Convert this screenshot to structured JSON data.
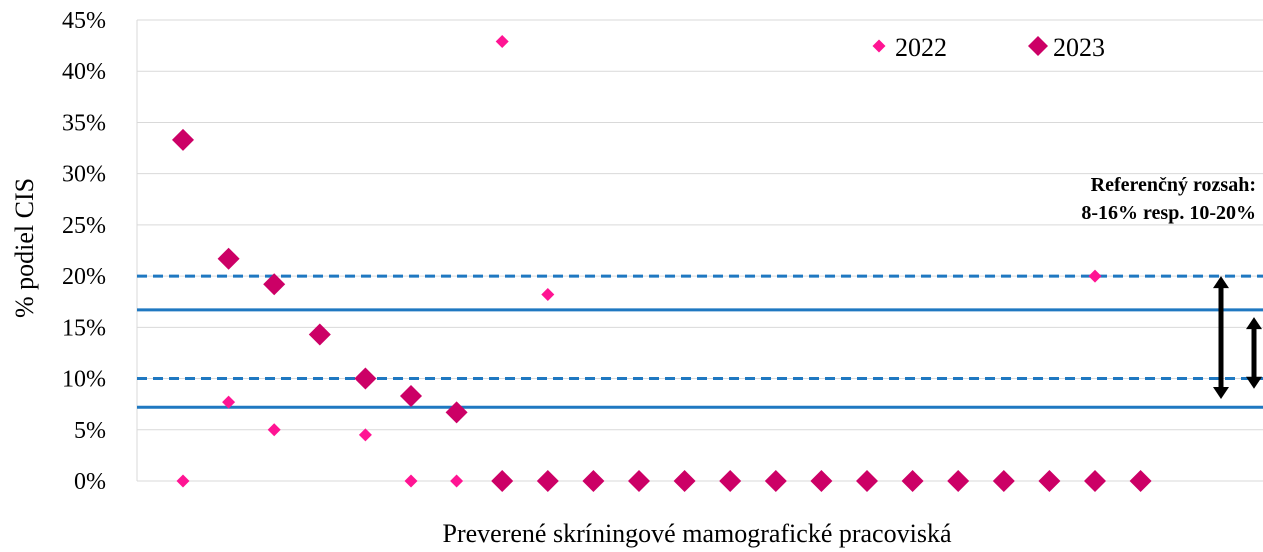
{
  "chart_data": {
    "type": "scatter",
    "title": "",
    "xlabel": "Preverené skríningové mamografické pracoviská",
    "ylabel": "% podiel CIS",
    "ylim": [
      0,
      45
    ],
    "yticks": [
      "0%",
      "5%",
      "10%",
      "15%",
      "20%",
      "25%",
      "30%",
      "35%",
      "40%",
      "45%"
    ],
    "grid": "horizontal",
    "legend_position": "top-right",
    "x": [
      1,
      2,
      3,
      4,
      5,
      6,
      7,
      8,
      9,
      10,
      11,
      12,
      13,
      14,
      15,
      16,
      17,
      18,
      19,
      20,
      21,
      22
    ],
    "series": [
      {
        "name": "2022",
        "color": "#ff1493",
        "marker": "small-diamond",
        "values": [
          0,
          7.7,
          5,
          null,
          4.5,
          0,
          0,
          42.9,
          18.2,
          null,
          null,
          null,
          null,
          null,
          null,
          null,
          null,
          null,
          null,
          null,
          20,
          null
        ]
      },
      {
        "name": "2023",
        "color": "#cc0066",
        "marker": "large-diamond",
        "values": [
          33.3,
          21.7,
          19.2,
          14.3,
          10,
          8.3,
          6.7,
          0,
          0,
          0,
          0,
          0,
          0,
          0,
          0,
          0,
          0,
          0,
          0,
          0,
          0,
          0
        ]
      }
    ],
    "reference_lines": [
      {
        "value": 20,
        "style": "dashed",
        "color": "#1f78c1"
      },
      {
        "value": 16.7,
        "style": "solid",
        "color": "#1f78c1"
      },
      {
        "value": 10,
        "style": "dashed",
        "color": "#1f78c1"
      },
      {
        "value": 7.2,
        "style": "solid",
        "color": "#1f78c1"
      }
    ],
    "arrows": [
      {
        "from": 20,
        "to": 8
      },
      {
        "from": 16,
        "to": 9
      }
    ],
    "annotation": [
      "Referenčný rozsah:",
      "8-16% resp. 10-20%"
    ]
  }
}
